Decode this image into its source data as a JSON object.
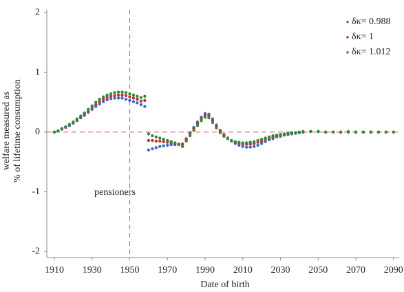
{
  "chart_data": {
    "type": "scatter",
    "ylabel": [
      "welfare measured as",
      "% of lifetime consumption"
    ],
    "xlabel": "Date of birth",
    "annotation": "pensioners",
    "reference_lines": {
      "x": 1950,
      "y": 0,
      "color": "#e06070"
    },
    "xlim": [
      1906,
      2093
    ],
    "ylim": [
      -2.1,
      2.05
    ],
    "xticks": [
      1910,
      1930,
      1950,
      1970,
      1990,
      2010,
      2030,
      2050,
      2070,
      2090
    ],
    "yticks": [
      -2,
      -1,
      0,
      1,
      2
    ],
    "legend": "upper right",
    "x": [
      1910,
      1912,
      1914,
      1916,
      1918,
      1920,
      1922,
      1924,
      1926,
      1928,
      1930,
      1932,
      1934,
      1936,
      1938,
      1940,
      1942,
      1944,
      1946,
      1948,
      1950,
      1952,
      1954,
      1956,
      1958,
      1960,
      1962,
      1964,
      1966,
      1968,
      1970,
      1972,
      1974,
      1976,
      1978,
      1980,
      1982,
      1984,
      1986,
      1988,
      1990,
      1992,
      1994,
      1996,
      1998,
      2000,
      2002,
      2004,
      2006,
      2008,
      2010,
      2012,
      2014,
      2016,
      2018,
      2020,
      2022,
      2024,
      2026,
      2028,
      2030,
      2032,
      2034,
      2036,
      2038,
      2040,
      2042,
      2046,
      2050,
      2054,
      2058,
      2062,
      2066,
      2070,
      2074,
      2078,
      2082,
      2086,
      2090
    ],
    "series": [
      {
        "name": "δκ= 0.988",
        "color": "#3a6cc4",
        "values": [
          0,
          0.02,
          0.05,
          0.08,
          0.11,
          0.15,
          0.19,
          0.24,
          0.28,
          0.33,
          0.38,
          0.43,
          0.47,
          0.51,
          0.54,
          0.56,
          0.57,
          0.57,
          0.57,
          0.55,
          0.53,
          0.51,
          0.49,
          0.46,
          0.43,
          -0.3,
          -0.28,
          -0.26,
          -0.24,
          -0.23,
          -0.22,
          -0.21,
          -0.21,
          -0.21,
          -0.2,
          -0.11,
          -0.01,
          0.08,
          0.17,
          0.25,
          0.31,
          0.3,
          0.22,
          0.12,
          0.03,
          -0.04,
          -0.1,
          -0.15,
          -0.19,
          -0.22,
          -0.24,
          -0.25,
          -0.25,
          -0.24,
          -0.22,
          -0.19,
          -0.16,
          -0.13,
          -0.11,
          -0.08,
          -0.07,
          -0.05,
          -0.04,
          -0.03,
          -0.02,
          -0.01,
          0,
          0.01,
          0.01,
          0,
          0,
          0,
          0,
          0,
          0,
          0,
          0,
          0,
          0
        ]
      },
      {
        "name": "δκ= 1",
        "color": "#c0303a",
        "values": [
          0,
          0.02,
          0.05,
          0.08,
          0.12,
          0.16,
          0.21,
          0.25,
          0.3,
          0.35,
          0.41,
          0.46,
          0.51,
          0.55,
          0.58,
          0.6,
          0.61,
          0.62,
          0.62,
          0.61,
          0.59,
          0.57,
          0.55,
          0.52,
          0.53,
          -0.14,
          -0.14,
          -0.15,
          -0.15,
          -0.16,
          -0.17,
          -0.18,
          -0.19,
          -0.2,
          -0.2,
          -0.12,
          -0.03,
          0.06,
          0.14,
          0.22,
          0.28,
          0.27,
          0.19,
          0.1,
          0.02,
          -0.05,
          -0.1,
          -0.14,
          -0.17,
          -0.19,
          -0.2,
          -0.2,
          -0.2,
          -0.19,
          -0.17,
          -0.15,
          -0.12,
          -0.1,
          -0.08,
          -0.06,
          -0.05,
          -0.04,
          -0.03,
          -0.02,
          -0.01,
          0,
          0,
          0.01,
          0.01,
          0,
          0,
          0,
          0,
          0,
          0,
          0,
          0,
          0,
          0
        ]
      },
      {
        "name": "δκ= 1.012",
        "color": "#2e8b3a",
        "values": [
          0,
          0.02,
          0.06,
          0.09,
          0.13,
          0.17,
          0.22,
          0.27,
          0.32,
          0.38,
          0.44,
          0.5,
          0.55,
          0.59,
          0.62,
          0.64,
          0.66,
          0.67,
          0.67,
          0.66,
          0.64,
          0.62,
          0.6,
          0.58,
          0.6,
          -0.03,
          -0.06,
          -0.08,
          -0.1,
          -0.12,
          -0.14,
          -0.16,
          -0.18,
          -0.21,
          -0.24,
          -0.15,
          -0.06,
          0.03,
          0.11,
          0.19,
          0.25,
          0.24,
          0.16,
          0.07,
          -0.01,
          -0.07,
          -0.11,
          -0.14,
          -0.16,
          -0.17,
          -0.18,
          -0.18,
          -0.17,
          -0.16,
          -0.14,
          -0.12,
          -0.1,
          -0.08,
          -0.06,
          -0.05,
          -0.04,
          -0.03,
          -0.02,
          -0.01,
          -0.01,
          0,
          0.01,
          0.01,
          0.01,
          0,
          0,
          0,
          0.01,
          0,
          0,
          0,
          0,
          0,
          0
        ]
      }
    ]
  }
}
